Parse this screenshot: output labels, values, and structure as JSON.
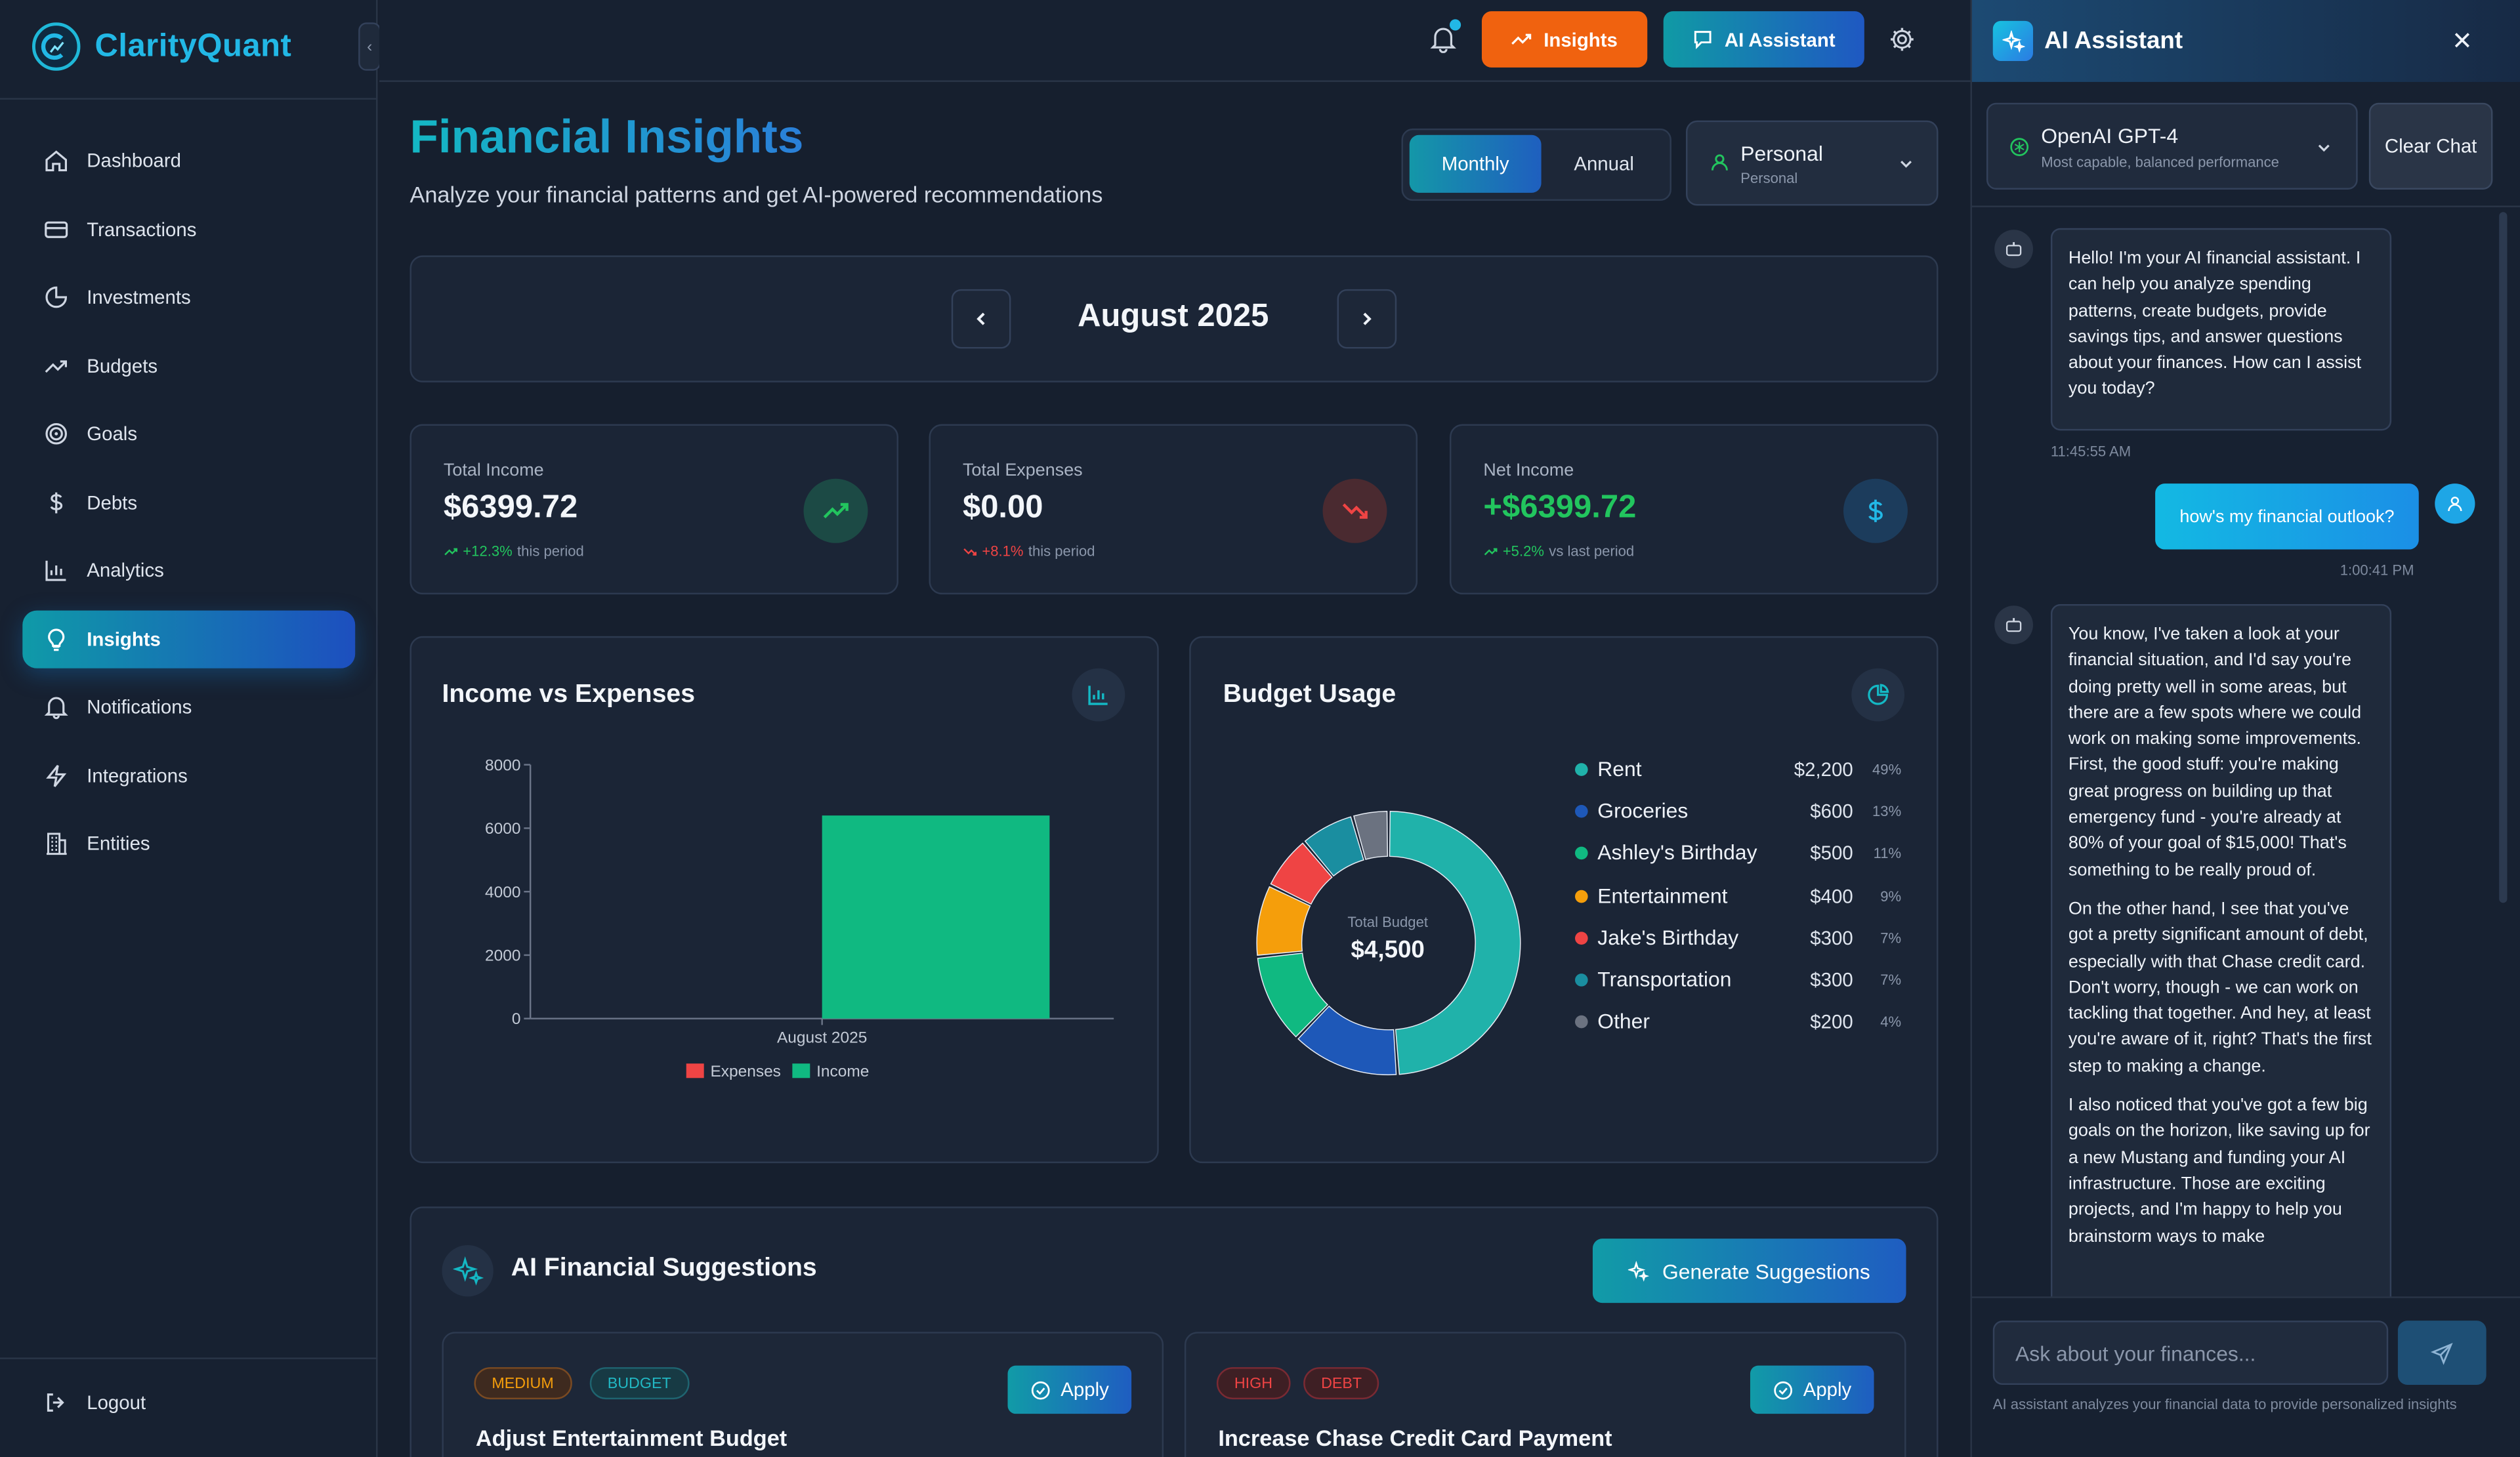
{
  "app": {
    "name": "ClarityQuant"
  },
  "sidebar": {
    "items": [
      {
        "label": "Dashboard",
        "icon": "home-icon"
      },
      {
        "label": "Transactions",
        "icon": "credit-card-icon"
      },
      {
        "label": "Investments",
        "icon": "pie-chart-icon"
      },
      {
        "label": "Budgets",
        "icon": "trending-up-icon"
      },
      {
        "label": "Goals",
        "icon": "target-icon"
      },
      {
        "label": "Debts",
        "icon": "dollar-icon"
      },
      {
        "label": "Analytics",
        "icon": "bar-chart-icon"
      },
      {
        "label": "Insights",
        "icon": "lightbulb-icon",
        "active": true
      },
      {
        "label": "Notifications",
        "icon": "bell-icon"
      },
      {
        "label": "Integrations",
        "icon": "lightning-icon"
      },
      {
        "label": "Entities",
        "icon": "building-icon"
      }
    ],
    "logout": "Logout"
  },
  "topbar": {
    "insights_label": "Insights",
    "ai_label": "AI Assistant"
  },
  "page": {
    "title": "Financial Insights",
    "subtitle": "Analyze your financial patterns and get AI-powered recommendations",
    "period_options": [
      "Monthly",
      "Annual"
    ],
    "period_selected": "Monthly",
    "entity": {
      "name": "Personal",
      "type": "Personal"
    },
    "month": "August 2025"
  },
  "stats": [
    {
      "label": "Total Income",
      "value": "$6399.72",
      "change": "+12.3%",
      "suffix": "this period",
      "trend": "up",
      "color": "#f3f6fa"
    },
    {
      "label": "Total Expenses",
      "value": "$0.00",
      "change": "+8.1%",
      "suffix": "this period",
      "trend": "down",
      "color": "#f3f6fa"
    },
    {
      "label": "Net Income",
      "value": "+$6399.72",
      "change": "+5.2%",
      "suffix": "vs last period",
      "trend": "up",
      "color": "#22c55e"
    }
  ],
  "chart_data": [
    {
      "type": "bar",
      "title": "Income vs Expenses",
      "categories": [
        "August 2025"
      ],
      "series": [
        {
          "name": "Expenses",
          "values": [
            0
          ],
          "color": "#ef4444"
        },
        {
          "name": "Income",
          "values": [
            6399.72
          ],
          "color": "#10b981"
        }
      ],
      "ylim": [
        0,
        8000
      ],
      "yticks": [
        0,
        2000,
        4000,
        6000,
        8000
      ],
      "legend": "bottom"
    },
    {
      "type": "pie",
      "title": "Budget Usage",
      "center_label": "Total Budget",
      "center_value": "$4,500",
      "slices": [
        {
          "label": "Rent",
          "amount": "$2,200",
          "value": 2200,
          "pct": "49%",
          "color": "#20b2aa"
        },
        {
          "label": "Groceries",
          "amount": "$600",
          "value": 600,
          "pct": "13%",
          "color": "#1e58b8"
        },
        {
          "label": "Ashley's Birthday",
          "amount": "$500",
          "value": 500,
          "pct": "11%",
          "color": "#10b981"
        },
        {
          "label": "Entertainment",
          "amount": "$400",
          "value": 400,
          "pct": "9%",
          "color": "#f59e0b"
        },
        {
          "label": "Jake's Birthday",
          "amount": "$300",
          "value": 300,
          "pct": "7%",
          "color": "#ef4444"
        },
        {
          "label": "Transportation",
          "amount": "$300",
          "value": 300,
          "pct": "7%",
          "color": "#1a8ea0"
        },
        {
          "label": "Other",
          "amount": "$200",
          "value": 200,
          "pct": "4%",
          "color": "#6b7280"
        }
      ]
    }
  ],
  "suggestions": {
    "title": "AI Financial Suggestions",
    "generate_label": "Generate Suggestions",
    "items": [
      {
        "priority": "MEDIUM",
        "category": "BUDGET",
        "title": "Adjust Entertainment Budget",
        "apply": "Apply"
      },
      {
        "priority": "HIGH",
        "category": "DEBT",
        "title": "Increase Chase Credit Card Payment",
        "apply": "Apply"
      }
    ]
  },
  "ai": {
    "title": "AI Assistant",
    "model_name": "OpenAI GPT-4",
    "model_desc": "Most capable, balanced performance",
    "clear_label": "Clear Chat",
    "messages": [
      {
        "role": "assistant",
        "text": "Hello! I'm your AI financial assistant. I can help you analyze spending patterns, create budgets, provide savings tips, and answer questions about your finances. How can I assist you today?",
        "time": "11:45:55 AM"
      },
      {
        "role": "user",
        "text": "how's my financial outlook?",
        "time": "1:00:41 PM"
      },
      {
        "role": "assistant",
        "paragraphs": [
          "You know, I've taken a look at your financial situation, and I'd say you're doing pretty well in some areas, but there are a few spots where we could work on making some improvements. First, the good stuff: you're making great progress on building up that emergency fund - you're already at 80% of your goal of $15,000! That's something to be really proud of.",
          "On the other hand, I see that you've got a pretty significant amount of debt, especially with that Chase credit card. Don't worry, though - we can work on tackling that together. And hey, at least you're aware of it, right? That's the first step to making a change.",
          "I also noticed that you've got a few big goals on the horizon, like saving up for a new Mustang and funding your AI infrastructure. Those are exciting projects, and I'm happy to help you brainstorm ways to make"
        ]
      }
    ],
    "input_placeholder": "Ask about your finances...",
    "note": "AI assistant analyzes your financial data to provide personalized insights"
  }
}
